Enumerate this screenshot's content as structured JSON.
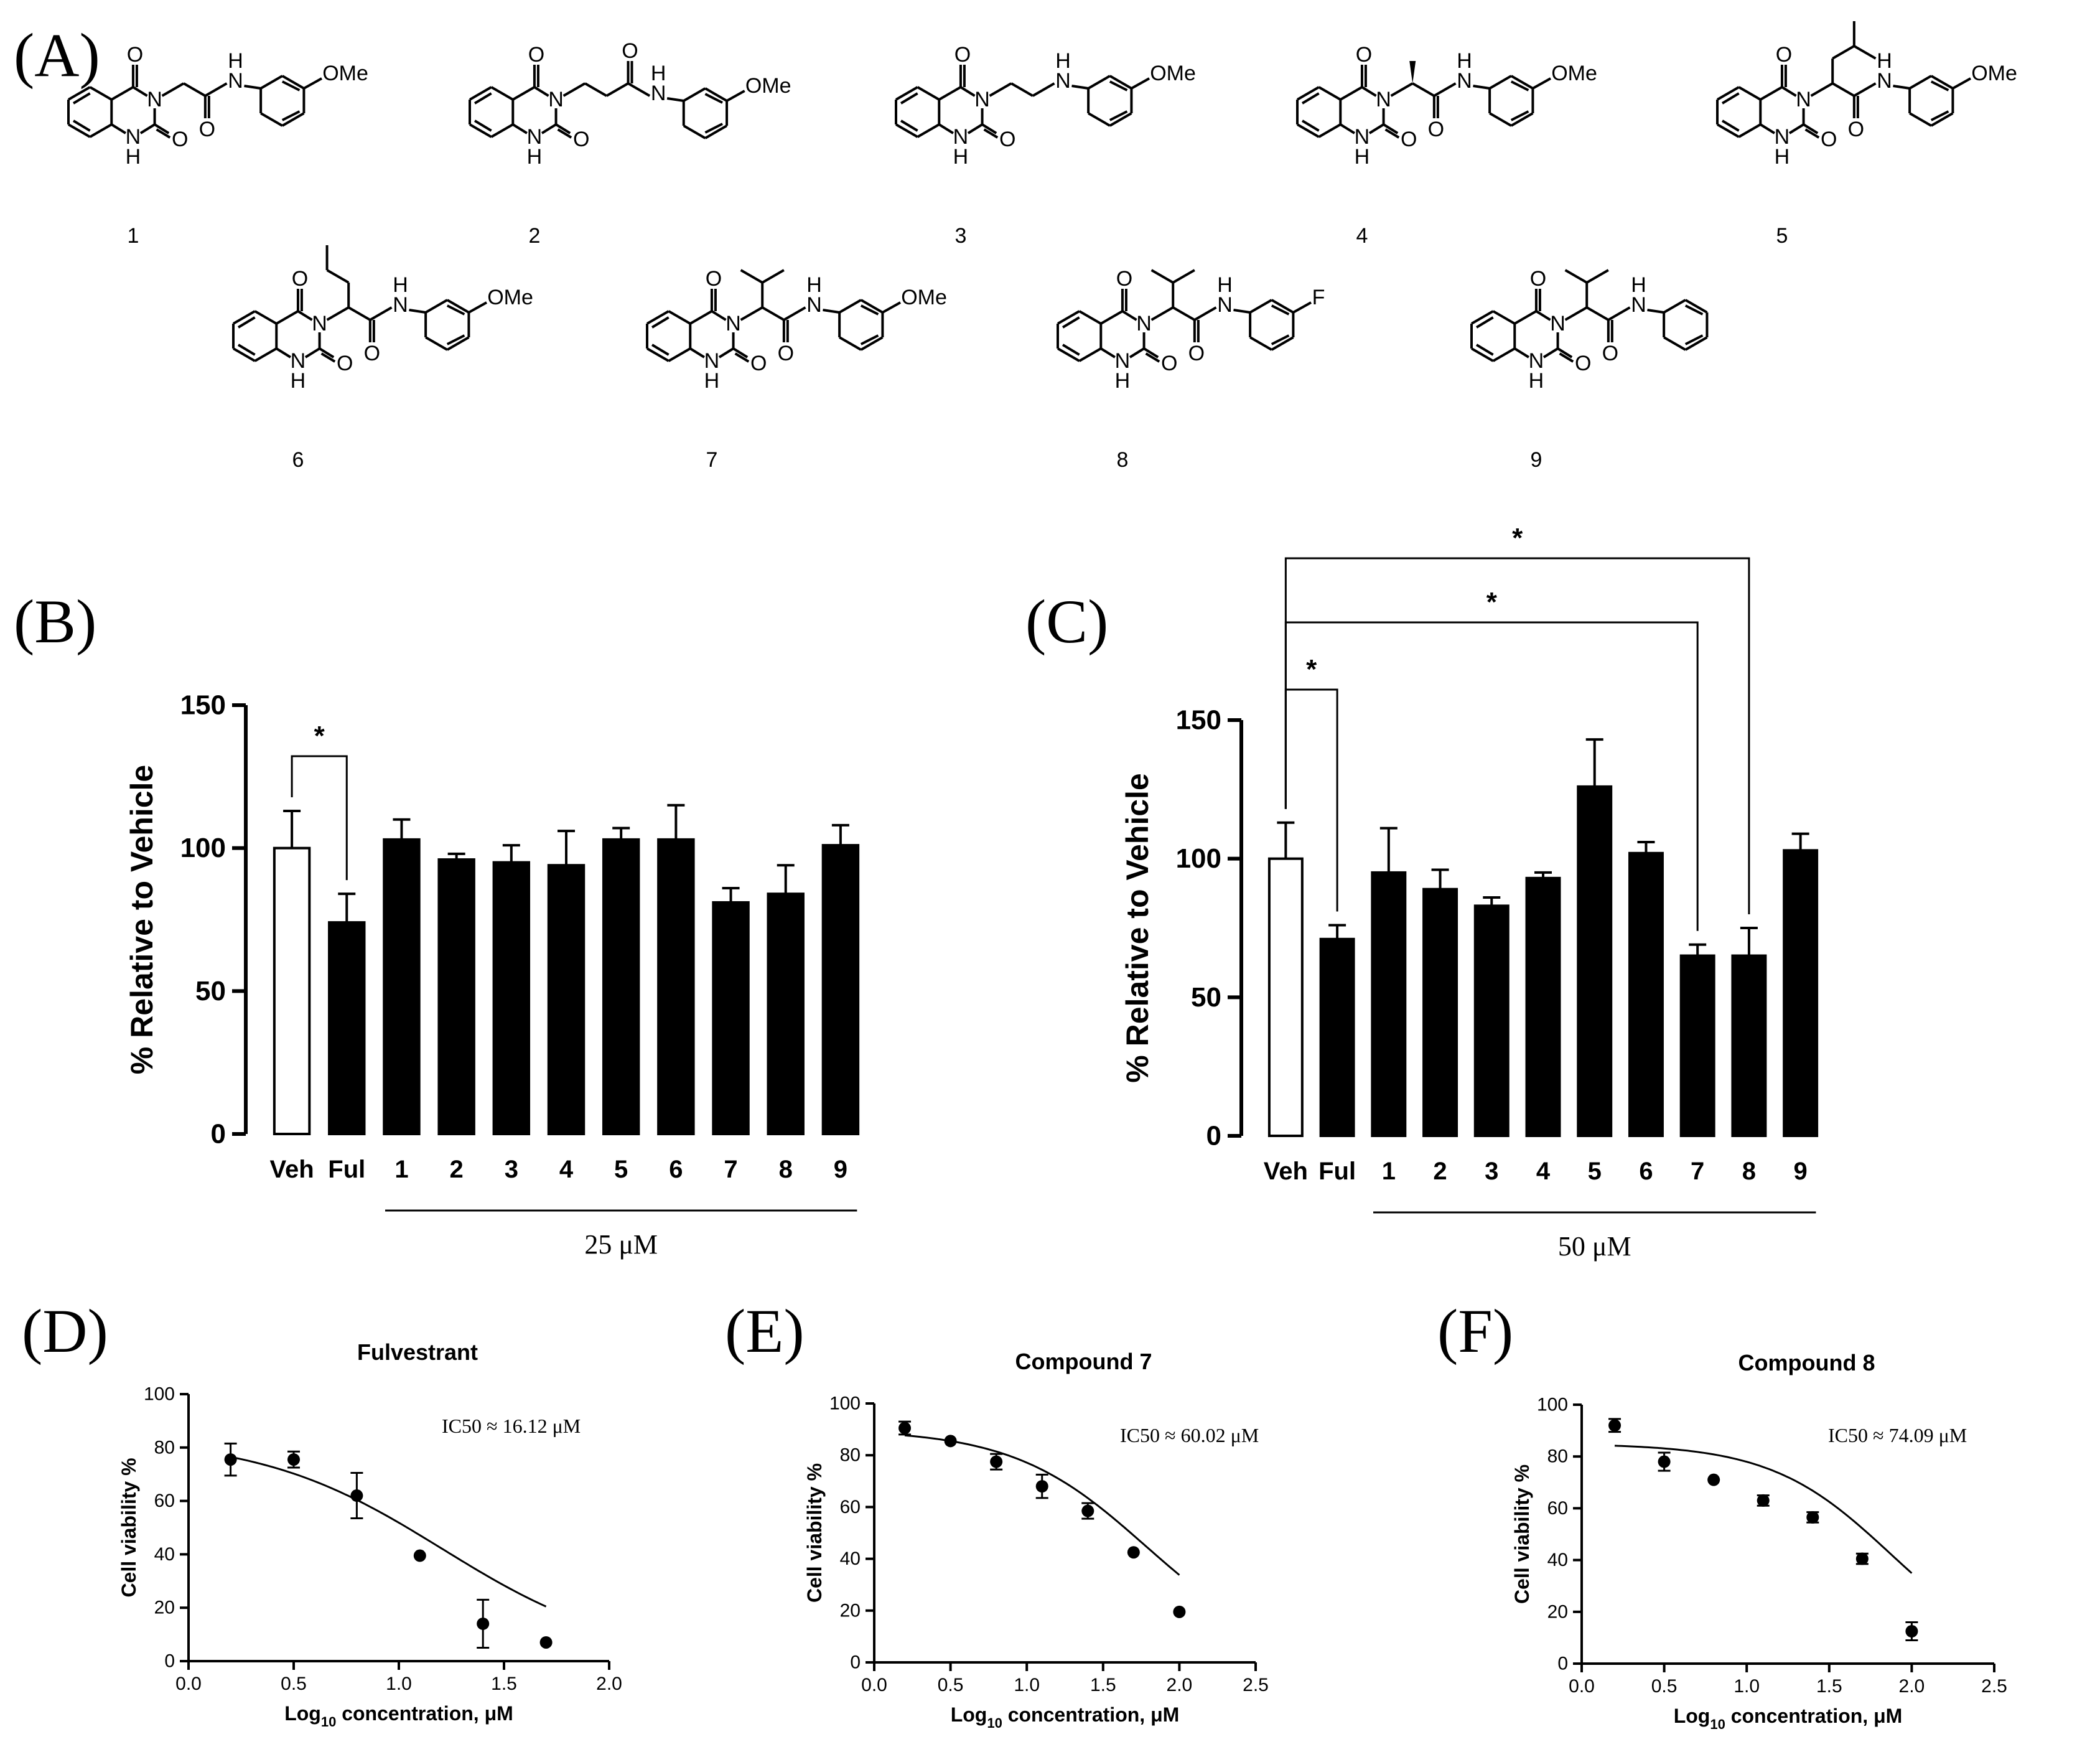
{
  "panels": {
    "a": {
      "letter": "(A)",
      "compounds": [
        {
          "number": "1",
          "link": "glycine",
          "aryl": "OMe"
        },
        {
          "number": "2",
          "link": "propanoyl",
          "aryl": "OMe"
        },
        {
          "number": "3",
          "link": "ethylamine",
          "aryl": "OMe"
        },
        {
          "number": "4",
          "link": "alanine",
          "aryl": "OMe"
        },
        {
          "number": "5",
          "link": "leucine",
          "aryl": "OMe"
        },
        {
          "number": "6",
          "link": "norvaline",
          "aryl": "OMe"
        },
        {
          "number": "7",
          "link": "valine",
          "aryl": "OMe"
        },
        {
          "number": "8",
          "link": "valine",
          "aryl": "F"
        },
        {
          "number": "9",
          "link": "valine",
          "aryl": ""
        }
      ],
      "atoms": {
        "oxygen": "O",
        "nitrogen": "N",
        "hydrogen": "H",
        "nh": "H"
      }
    },
    "b": {
      "letter": "(B)"
    },
    "c": {
      "letter": "(C)"
    },
    "d": {
      "letter": "(D)"
    },
    "e": {
      "letter": "(E)"
    },
    "f": {
      "letter": "(F)"
    }
  },
  "chart_data": [
    {
      "id": "b",
      "type": "bar",
      "ylabel": "% Relative to  Vehicle",
      "ylim": [
        0,
        150
      ],
      "yticks": [
        0,
        50,
        100,
        150
      ],
      "categories": [
        "Veh",
        "Ful",
        "1",
        "2",
        "3",
        "4",
        "5",
        "6",
        "7",
        "8",
        "9"
      ],
      "values": [
        100,
        74,
        103,
        96,
        95,
        94,
        103,
        103,
        81,
        84,
        101
      ],
      "errors": [
        13,
        10,
        7,
        2,
        6,
        12,
        4,
        12,
        5,
        10,
        7
      ],
      "fills": [
        "#ffffff",
        "#000000",
        "#000000",
        "#000000",
        "#000000",
        "#000000",
        "#000000",
        "#000000",
        "#000000",
        "#000000",
        "#000000"
      ],
      "group_label": "25 μM",
      "group_span": [
        "1",
        "9"
      ],
      "significance": [
        {
          "from": "Veh",
          "to": "Ful",
          "label": "*"
        }
      ]
    },
    {
      "id": "c",
      "type": "bar",
      "ylabel": "% Relative to  Vehicle",
      "ylim": [
        0,
        150
      ],
      "yticks": [
        0,
        50,
        100,
        150
      ],
      "categories": [
        "Veh",
        "Ful",
        "1",
        "2",
        "3",
        "4",
        "5",
        "6",
        "7",
        "8",
        "9"
      ],
      "values": [
        100,
        71,
        95,
        89,
        83,
        93,
        126,
        102,
        65,
        65,
        103
      ],
      "errors": [
        13,
        5,
        16,
        7,
        3,
        2,
        17,
        4,
        4,
        10,
        6
      ],
      "fills": [
        "#ffffff",
        "#000000",
        "#000000",
        "#000000",
        "#000000",
        "#000000",
        "#000000",
        "#000000",
        "#000000",
        "#000000",
        "#000000"
      ],
      "group_label": "50 μM",
      "group_span": [
        "1",
        "9"
      ],
      "significance": [
        {
          "from": "Veh",
          "to": "Ful",
          "label": "*"
        },
        {
          "from": "Veh",
          "to": "7",
          "label": "*"
        },
        {
          "from": "Veh",
          "to": "8",
          "label": "*"
        }
      ]
    },
    {
      "id": "d",
      "type": "scatter",
      "title": "Fulvestrant",
      "xlabel_prefix": "Log",
      "xlabel_sub": "10",
      "xlabel_suffix": " concentration, μM",
      "ylabel": "Cell viability %",
      "annotation": "IC50 ≈ 16.12 μM",
      "xlim": [
        0,
        2.0
      ],
      "xticks": [
        "0.0",
        "0.5",
        "1.0",
        "1.5",
        "2.0"
      ],
      "ylim": [
        0,
        100
      ],
      "yticks": [
        0,
        20,
        40,
        60,
        80,
        100
      ],
      "x": [
        0.2,
        0.5,
        0.8,
        1.1,
        1.4,
        1.7
      ],
      "y": [
        75.5,
        75.5,
        62,
        39.5,
        14,
        7
      ],
      "errors": [
        6,
        3,
        8.5,
        0,
        9,
        0
      ],
      "fit": {
        "top": 84,
        "ic50_log": 1.2074,
        "hill": 1.0,
        "x_range": [
          0.2,
          1.7
        ]
      }
    },
    {
      "id": "e",
      "type": "scatter",
      "title": "Compound 7",
      "xlabel_prefix": "Log",
      "xlabel_sub": "10",
      "xlabel_suffix": " concentration, μM",
      "ylabel": "Cell viability %",
      "annotation": "IC50 ≈ 60.02 μM",
      "xlim": [
        0,
        2.5
      ],
      "xticks": [
        "0.0",
        "0.5",
        "1.0",
        "1.5",
        "2.0",
        "2.5"
      ],
      "ylim": [
        0,
        100
      ],
      "yticks": [
        0,
        20,
        40,
        60,
        80,
        100
      ],
      "x": [
        0.2,
        0.5,
        0.8,
        1.1,
        1.4,
        1.7,
        2.0
      ],
      "y": [
        90.5,
        85.5,
        77.5,
        68,
        58.5,
        42.5,
        19.5
      ],
      "errors": [
        2.5,
        0,
        3,
        4.5,
        3,
        0,
        0
      ],
      "fit": {
        "top": 90,
        "ic50_log": 1.7783,
        "hill": 1.0,
        "x_range": [
          0.2,
          2.0
        ]
      }
    },
    {
      "id": "f",
      "type": "scatter",
      "title": "Compound 8",
      "xlabel_prefix": "Log",
      "xlabel_sub": "10",
      "xlabel_suffix": " concentration, μM",
      "ylabel": "Cell viability %",
      "annotation": "IC50 ≈ 74.09 μM",
      "xlim": [
        0,
        2.5
      ],
      "xticks": [
        "0.0",
        "0.5",
        "1.0",
        "1.5",
        "2.0",
        "2.5"
      ],
      "ylim": [
        0,
        100
      ],
      "yticks": [
        0,
        20,
        40,
        60,
        80,
        100
      ],
      "x": [
        0.2,
        0.5,
        0.8,
        1.1,
        1.4,
        1.7,
        2.0
      ],
      "y": [
        92,
        78,
        71,
        63,
        56.5,
        40.5,
        12.5
      ],
      "errors": [
        2.5,
        3.5,
        0,
        2,
        2,
        2,
        3.5
      ],
      "fit": {
        "top": 85,
        "ic50_log": 1.8698,
        "hill": 1.2,
        "x_range": [
          0.2,
          2.0
        ]
      }
    }
  ]
}
